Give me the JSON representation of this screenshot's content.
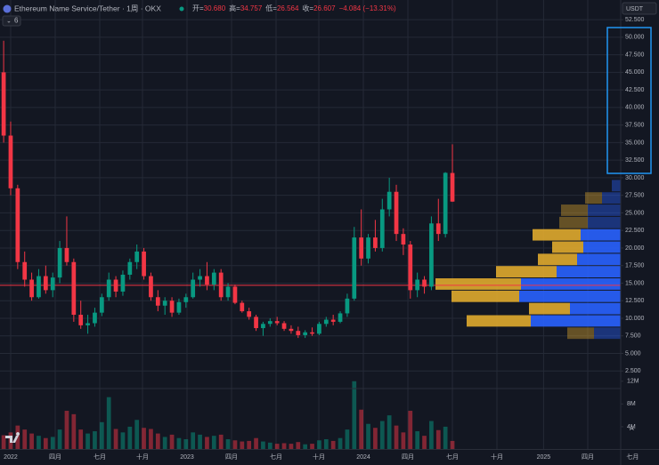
{
  "chart_data": {
    "type": "candlestick",
    "title": "Ethereum Name Service/Tether · 1周 · OKX",
    "ohlc": [
      {
        "label": "开=",
        "value": "30.680"
      },
      {
        "label": "高=",
        "value": "34.757"
      },
      {
        "label": "低=",
        "value": "26.564"
      },
      {
        "label": "收=",
        "value": "26.607"
      }
    ],
    "change": "−4.084 (−13.31%)",
    "indicators": 6,
    "currency": "USDT",
    "scale_button": "A",
    "up_color": "#089981",
    "down_color": "#f23645",
    "candles": [
      [
        45,
        49.5,
        35,
        36
      ],
      [
        36,
        38,
        27.5,
        28.5
      ],
      [
        28.5,
        29,
        17,
        18
      ],
      [
        18,
        19.5,
        14.5,
        15.5
      ],
      [
        15.5,
        16.5,
        12.5,
        13
      ],
      [
        13,
        17,
        12.8,
        16
      ],
      [
        16,
        17.5,
        13.5,
        14
      ],
      [
        14,
        16.5,
        13,
        15.8
      ],
      [
        15.8,
        21,
        15,
        20
      ],
      [
        20,
        24.5,
        17.5,
        18
      ],
      [
        18,
        18.5,
        9.5,
        10.5
      ],
      [
        10.5,
        12.5,
        8.5,
        9
      ],
      [
        9,
        10.5,
        7.8,
        9.3
      ],
      [
        9.3,
        11.5,
        8.8,
        10.8
      ],
      [
        10.8,
        13.5,
        10.3,
        13
      ],
      [
        13,
        16.5,
        12.5,
        15.5
      ],
      [
        15.5,
        16,
        13,
        13.8
      ],
      [
        13.8,
        16.8,
        13.2,
        16.2
      ],
      [
        16.2,
        18.5,
        15.5,
        18
      ],
      [
        18,
        20.5,
        17,
        19.5
      ],
      [
        19.5,
        20,
        15.5,
        16
      ],
      [
        16,
        16.5,
        12.5,
        13
      ],
      [
        13,
        14,
        11,
        11.8
      ],
      [
        11.8,
        13,
        10.5,
        12.5
      ],
      [
        12.5,
        13,
        10.2,
        10.8
      ],
      [
        10.8,
        12.8,
        10.5,
        12.3
      ],
      [
        12.3,
        13.5,
        11.5,
        13
      ],
      [
        13,
        16.5,
        12.8,
        15.5
      ],
      [
        15.5,
        17,
        14.5,
        16
      ],
      [
        16,
        18,
        14,
        14.8
      ],
      [
        14.8,
        17,
        14,
        16.5
      ],
      [
        16.5,
        17,
        12.5,
        13
      ],
      [
        13,
        15,
        12.5,
        14.5
      ],
      [
        14.5,
        14.8,
        12,
        12.2
      ],
      [
        12.2,
        12.5,
        10.8,
        11
      ],
      [
        11,
        11.5,
        9.8,
        10.2
      ],
      [
        10.2,
        10.5,
        8.2,
        8.6
      ],
      [
        8.6,
        9.5,
        7.5,
        9.2
      ],
      [
        9.2,
        10,
        8.8,
        9.6
      ],
      [
        9.6,
        10.2,
        9,
        9.3
      ],
      [
        9.3,
        9.6,
        8.2,
        8.5
      ],
      [
        8.5,
        9,
        7.8,
        8.2
      ],
      [
        8.2,
        8.8,
        7.2,
        7.6
      ],
      [
        7.6,
        8.3,
        7.2,
        8
      ],
      [
        8,
        8.7,
        7.5,
        7.8
      ],
      [
        7.8,
        9.5,
        7.6,
        9.2
      ],
      [
        9.2,
        10.2,
        8.8,
        9.8
      ],
      [
        9.8,
        10.5,
        9,
        9.5
      ],
      [
        9.5,
        11,
        9.3,
        10.7
      ],
      [
        10.7,
        13.5,
        10.2,
        12.8
      ],
      [
        12.8,
        23,
        12.5,
        21.5
      ],
      [
        21.5,
        25.5,
        17.5,
        18.5
      ],
      [
        18.5,
        22,
        17.8,
        21.5
      ],
      [
        21.5,
        24,
        19.5,
        20
      ],
      [
        20,
        27,
        19.5,
        25.5
      ],
      [
        25.5,
        30,
        24.5,
        28
      ],
      [
        28,
        29,
        21,
        22
      ],
      [
        22,
        22.8,
        19,
        20.5
      ],
      [
        20.5,
        21,
        12.8,
        14
      ],
      [
        14,
        16.5,
        13,
        15.5
      ],
      [
        15.5,
        16,
        13.5,
        14.5
      ],
      [
        14.5,
        24.5,
        14,
        23.5
      ],
      [
        23.5,
        27,
        21,
        22
      ],
      [
        22,
        30.8,
        21.5,
        30.7
      ],
      [
        30.68,
        34.757,
        26.564,
        26.607
      ]
    ],
    "volumes": [
      2500000,
      3000000,
      4200000,
      3500000,
      2800000,
      2400000,
      2000000,
      2200000,
      3500000,
      6800000,
      6200000,
      3500000,
      2800000,
      3200000,
      4800000,
      9200000,
      3600000,
      3000000,
      4000000,
      5200000,
      3800000,
      3600000,
      2800000,
      2200000,
      2600000,
      2000000,
      1800000,
      3000000,
      2600000,
      2200000,
      2400000,
      2600000,
      1800000,
      1600000,
      1400000,
      1500000,
      2000000,
      1400000,
      1200000,
      1000000,
      1100000,
      1000000,
      1300000,
      900000,
      1000000,
      1600000,
      1800000,
      1500000,
      2000000,
      3500000,
      12000000,
      7000000,
      4500000,
      3800000,
      5000000,
      6000000,
      4200000,
      3000000,
      6800000,
      3200000,
      2400000,
      5000000,
      3400000,
      4000000,
      1500000
    ],
    "xlim": [
      -0.52,
      88
    ],
    "xticks": [
      {
        "value": 1,
        "label": "2022"
      },
      {
        "value": 7.35,
        "label": "四月"
      },
      {
        "value": 13.7,
        "label": "七月"
      },
      {
        "value": 19.8,
        "label": "十月"
      },
      {
        "value": 26.15,
        "label": "2023"
      },
      {
        "value": 32.5,
        "label": "四月"
      },
      {
        "value": 38.85,
        "label": "七月"
      },
      {
        "value": 44.95,
        "label": "十月"
      },
      {
        "value": 51.3,
        "label": "2024"
      },
      {
        "value": 57.65,
        "label": "四月"
      },
      {
        "value": 64,
        "label": "七月"
      },
      {
        "value": 70.35,
        "label": "十月"
      },
      {
        "value": 77,
        "label": "2025"
      },
      {
        "value": 83.3,
        "label": "四月"
      },
      {
        "value": 89.7,
        "label": "七月"
      }
    ],
    "ylim": [
      0,
      53.4
    ],
    "yticks": [
      {
        "value": 2.5,
        "label": "2.500"
      },
      {
        "value": 5,
        "label": "5.000"
      },
      {
        "value": 7.5,
        "label": "7.500"
      },
      {
        "value": 10,
        "label": "10.000"
      },
      {
        "value": 12.5,
        "label": "12.500"
      },
      {
        "value": 15,
        "label": "15.000"
      },
      {
        "value": 17.5,
        "label": "17.500"
      },
      {
        "value": 20,
        "label": "20.000"
      },
      {
        "value": 22.5,
        "label": "22.500"
      },
      {
        "value": 25,
        "label": "25.000"
      },
      {
        "value": 27.5,
        "label": "27.500"
      },
      {
        "value": 30,
        "label": "30.000"
      },
      {
        "value": 32.5,
        "label": "32.500"
      },
      {
        "value": 35,
        "label": "35.000"
      },
      {
        "value": 37.5,
        "label": "37.500"
      },
      {
        "value": 40,
        "label": "40.000"
      },
      {
        "value": 42.5,
        "label": "42.500"
      },
      {
        "value": 45,
        "label": "45.000"
      },
      {
        "value": 47.5,
        "label": "47.500"
      },
      {
        "value": 50,
        "label": "50.000"
      },
      {
        "value": 52.5,
        "label": "52.500"
      }
    ],
    "vol_lim": [
      0,
      14000000
    ],
    "vol_ticks": [
      {
        "value": 4000000,
        "label": "4M"
      },
      {
        "value": 8000000,
        "label": "8M"
      },
      {
        "value": 12000000,
        "label": "12M"
      }
    ],
    "grid": true,
    "hline": {
      "value": 14.7,
      "color": "#f23645"
    },
    "volume_profile": {
      "bins": [
        7,
        8.75,
        10.5,
        12.25,
        14,
        15.75,
        17.5,
        19.25,
        21,
        22.75,
        24.5,
        26.25,
        28,
        29.75
      ],
      "up": [
        30,
        101,
        57,
        114,
        112,
        72,
        49,
        42,
        45,
        37,
        37,
        21,
        10
      ],
      "down": [
        30,
        72,
        46,
        76,
        96,
        68,
        44,
        35,
        54,
        32,
        30,
        19,
        0
      ],
      "up_color": "#2962ff",
      "down_color": "#e0aa2e",
      "value_area": {
        "low": 8.75,
        "high": 22.75
      }
    }
  }
}
